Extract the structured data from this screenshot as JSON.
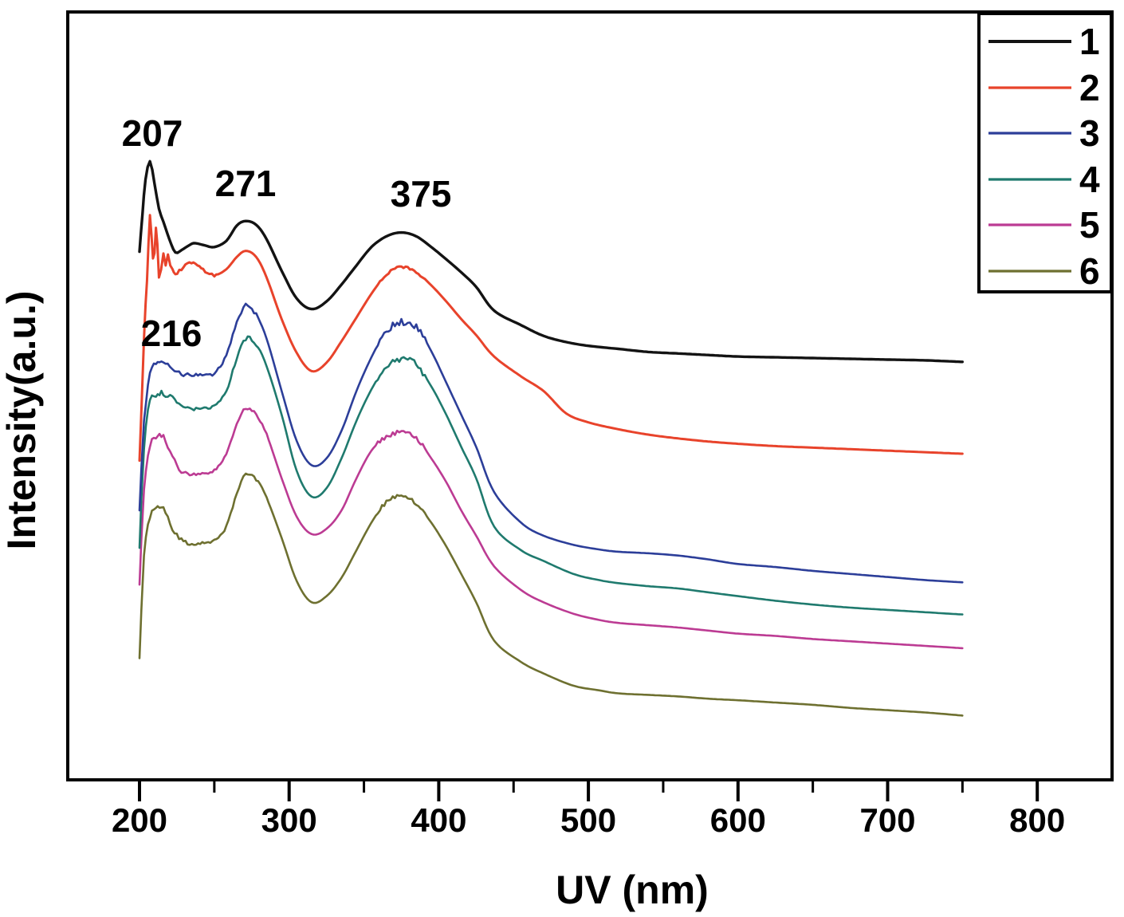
{
  "figure": {
    "background_color": "#ffffff",
    "frame_color": "#000000",
    "legend_position": "top-right"
  },
  "chart_data": {
    "type": "line",
    "title": "",
    "xlabel": "UV (nm)",
    "ylabel": "Intensity(a.u.)",
    "x_ticks_major": [
      200,
      300,
      400,
      500,
      600,
      700,
      800
    ],
    "x_ticks_minor": [
      250,
      350,
      450,
      550,
      650,
      750
    ],
    "x_axis_range_nm": [
      152,
      851
    ],
    "x_data_range_nm": [
      200,
      750
    ],
    "y_axis_note": "arbitrary units, no tick marks or tick labels",
    "ylim": [
      0,
      1
    ],
    "grid": false,
    "legend_entries": [
      "1",
      "2",
      "3",
      "4",
      "5",
      "6"
    ],
    "peak_labels": [
      {
        "text": "207",
        "nm": 207
      },
      {
        "text": "216",
        "nm": 216
      },
      {
        "text": "271",
        "nm": 271
      },
      {
        "text": "375",
        "nm": 375
      }
    ],
    "series": [
      {
        "name": "1",
        "color": "#131313",
        "x": [
          200,
          202,
          204,
          207,
          210,
          213,
          216,
          220,
          224,
          228,
          232,
          236,
          240,
          244,
          250,
          258,
          265,
          271,
          278,
          285,
          295,
          305,
          315,
          325,
          335,
          345,
          355,
          365,
          375,
          385,
          395,
          405,
          415,
          425,
          437,
          455,
          470,
          485,
          500,
          520,
          540,
          560,
          580,
          600,
          625,
          650,
          675,
          700,
          725,
          750
        ],
        "y": [
          0.69,
          0.74,
          0.784,
          0.808,
          0.779,
          0.746,
          0.729,
          0.706,
          0.689,
          0.692,
          0.697,
          0.701,
          0.7,
          0.698,
          0.696,
          0.704,
          0.724,
          0.73,
          0.725,
          0.706,
          0.665,
          0.629,
          0.615,
          0.625,
          0.647,
          0.672,
          0.696,
          0.71,
          0.715,
          0.71,
          0.696,
          0.68,
          0.663,
          0.644,
          0.613,
          0.594,
          0.58,
          0.572,
          0.567,
          0.563,
          0.559,
          0.557,
          0.555,
          0.553,
          0.552,
          0.551,
          0.55,
          0.549,
          0.548,
          0.546
        ],
        "noise_bands": []
      },
      {
        "name": "2",
        "color": "#e8432b",
        "x": [
          200,
          203,
          205,
          207,
          209,
          211,
          213,
          216,
          219,
          222,
          224,
          228,
          232,
          236,
          240,
          244,
          250,
          258,
          265,
          271,
          278,
          285,
          295,
          305,
          315,
          325,
          335,
          345,
          355,
          365,
          375,
          385,
          395,
          405,
          415,
          425,
          437,
          455,
          470,
          485,
          500,
          520,
          540,
          560,
          580,
          600,
          625,
          650,
          675,
          700,
          725,
          750
        ],
        "y": [
          0.417,
          0.571,
          0.654,
          0.74,
          0.675,
          0.717,
          0.665,
          0.683,
          0.675,
          0.669,
          0.661,
          0.667,
          0.673,
          0.675,
          0.671,
          0.664,
          0.659,
          0.667,
          0.683,
          0.691,
          0.683,
          0.656,
          0.602,
          0.558,
          0.534,
          0.545,
          0.573,
          0.604,
          0.635,
          0.66,
          0.67,
          0.663,
          0.646,
          0.625,
          0.602,
          0.581,
          0.553,
          0.527,
          0.508,
          0.479,
          0.467,
          0.458,
          0.451,
          0.446,
          0.442,
          0.439,
          0.436,
          0.434,
          0.432,
          0.43,
          0.428,
          0.426
        ],
        "noise_bands": [
          [
            202,
            219,
            9
          ],
          [
            219,
            252,
            2
          ],
          [
            360,
            392,
            1.5
          ]
        ]
      },
      {
        "name": "3",
        "color": "#2c3e99",
        "x": [
          200,
          203,
          207,
          211,
          216,
          222,
          228,
          235,
          242,
          250,
          258,
          265,
          271,
          278,
          285,
          295,
          305,
          315,
          325,
          335,
          345,
          355,
          365,
          375,
          385,
          395,
          405,
          415,
          425,
          437,
          455,
          470,
          490,
          507,
          520,
          540,
          560,
          580,
          600,
          625,
          650,
          675,
          700,
          725,
          750
        ],
        "y": [
          0.352,
          0.467,
          0.529,
          0.545,
          0.548,
          0.538,
          0.531,
          0.529,
          0.529,
          0.531,
          0.555,
          0.597,
          0.62,
          0.607,
          0.576,
          0.508,
          0.443,
          0.411,
          0.42,
          0.456,
          0.508,
          0.552,
          0.586,
          0.598,
          0.592,
          0.56,
          0.519,
          0.477,
          0.435,
          0.376,
          0.336,
          0.319,
          0.307,
          0.301,
          0.298,
          0.296,
          0.293,
          0.288,
          0.282,
          0.278,
          0.273,
          0.269,
          0.265,
          0.261,
          0.258
        ],
        "noise_bands": [
          [
            203,
            232,
            3.5
          ],
          [
            232,
            260,
            1.8
          ],
          [
            260,
            280,
            2.5
          ],
          [
            358,
            392,
            4.2
          ]
        ]
      },
      {
        "name": "4",
        "color": "#1f7a6e",
        "x": [
          200,
          203,
          207,
          211,
          216,
          222,
          228,
          235,
          242,
          250,
          258,
          265,
          271,
          278,
          285,
          295,
          305,
          315,
          325,
          335,
          345,
          355,
          365,
          375,
          385,
          395,
          405,
          415,
          425,
          437,
          455,
          470,
          490,
          507,
          520,
          540,
          560,
          580,
          600,
          625,
          650,
          675,
          700,
          725,
          750
        ],
        "y": [
          0.303,
          0.435,
          0.493,
          0.503,
          0.505,
          0.498,
          0.49,
          0.485,
          0.485,
          0.488,
          0.508,
          0.55,
          0.576,
          0.569,
          0.54,
          0.477,
          0.404,
          0.37,
          0.381,
          0.42,
          0.469,
          0.51,
          0.54,
          0.55,
          0.542,
          0.514,
          0.477,
          0.435,
          0.394,
          0.331,
          0.3,
          0.286,
          0.269,
          0.261,
          0.257,
          0.253,
          0.25,
          0.245,
          0.24,
          0.234,
          0.229,
          0.225,
          0.222,
          0.219,
          0.216
        ],
        "noise_bands": [
          [
            203,
            232,
            3.5
          ],
          [
            232,
            260,
            1.8
          ],
          [
            260,
            280,
            2.5
          ],
          [
            358,
            392,
            4
          ]
        ]
      },
      {
        "name": "5",
        "color": "#bc3b93",
        "x": [
          200,
          203,
          207,
          211,
          216,
          222,
          228,
          235,
          242,
          250,
          258,
          265,
          271,
          278,
          285,
          295,
          305,
          315,
          325,
          335,
          345,
          355,
          365,
          375,
          385,
          395,
          405,
          415,
          425,
          437,
          455,
          470,
          490,
          507,
          520,
          540,
          560,
          580,
          600,
          625,
          650,
          675,
          700,
          725,
          750
        ],
        "y": [
          0.255,
          0.378,
          0.435,
          0.448,
          0.448,
          0.423,
          0.404,
          0.399,
          0.401,
          0.404,
          0.425,
          0.465,
          0.485,
          0.477,
          0.451,
          0.394,
          0.344,
          0.321,
          0.328,
          0.352,
          0.394,
          0.43,
          0.448,
          0.454,
          0.446,
          0.42,
          0.389,
          0.352,
          0.319,
          0.279,
          0.248,
          0.232,
          0.217,
          0.209,
          0.205,
          0.202,
          0.199,
          0.195,
          0.191,
          0.188,
          0.184,
          0.181,
          0.178,
          0.175,
          0.172
        ],
        "noise_bands": [
          [
            203,
            232,
            3
          ],
          [
            232,
            285,
            1.5
          ],
          [
            358,
            392,
            2.5
          ]
        ]
      },
      {
        "name": "6",
        "color": "#6e7030",
        "x": [
          200,
          203,
          207,
          211,
          216,
          222,
          228,
          235,
          242,
          250,
          258,
          265,
          271,
          278,
          285,
          295,
          305,
          315,
          325,
          335,
          345,
          355,
          365,
          375,
          385,
          395,
          405,
          415,
          425,
          437,
          455,
          470,
          490,
          507,
          520,
          540,
          560,
          580,
          600,
          625,
          650,
          675,
          700,
          725,
          750
        ],
        "y": [
          0.159,
          0.29,
          0.344,
          0.354,
          0.355,
          0.329,
          0.313,
          0.308,
          0.31,
          0.313,
          0.331,
          0.373,
          0.399,
          0.392,
          0.368,
          0.316,
          0.26,
          0.232,
          0.24,
          0.264,
          0.3,
          0.336,
          0.363,
          0.37,
          0.36,
          0.336,
          0.305,
          0.269,
          0.232,
          0.182,
          0.154,
          0.139,
          0.123,
          0.117,
          0.113,
          0.111,
          0.109,
          0.106,
          0.104,
          0.101,
          0.098,
          0.094,
          0.091,
          0.088,
          0.084
        ],
        "noise_bands": [
          [
            203,
            232,
            3
          ],
          [
            232,
            285,
            1.5
          ],
          [
            358,
            392,
            2.5
          ]
        ]
      }
    ]
  }
}
